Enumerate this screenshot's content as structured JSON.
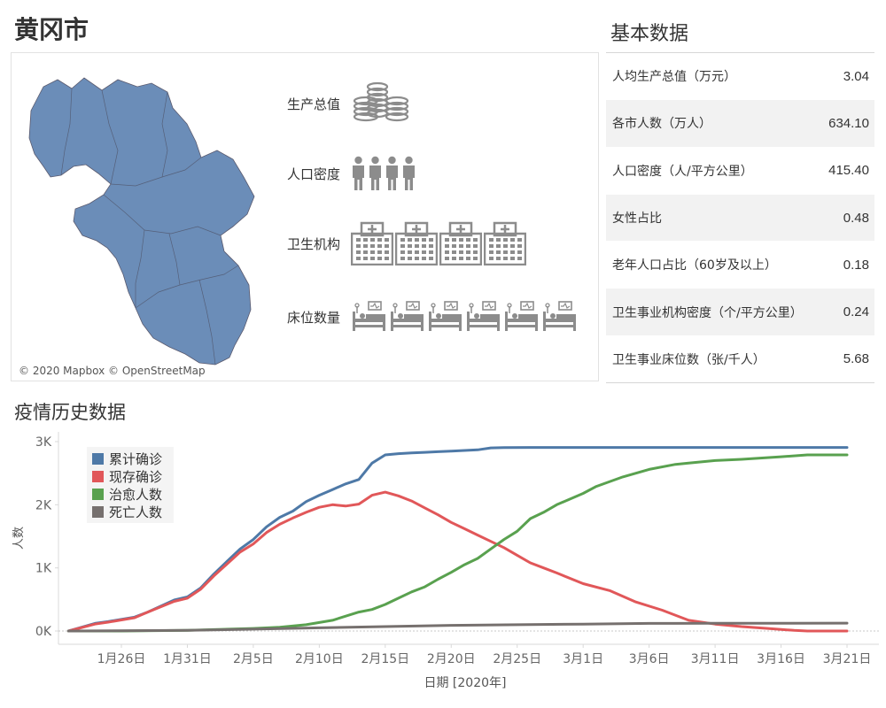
{
  "header": {
    "title": "黄冈市"
  },
  "map": {
    "credit": "© 2020 Mapbox © OpenStreetMap",
    "region_color": "#6b8db8"
  },
  "indicators": [
    {
      "label": "生产总值",
      "icon": "coin-stack-icon",
      "count": 2
    },
    {
      "label": "人口密度",
      "icon": "person-icon",
      "count": 4
    },
    {
      "label": "卫生机构",
      "icon": "hospital-icon",
      "count": 4
    },
    {
      "label": "床位数量",
      "icon": "hospital-bed-icon",
      "count": 6
    }
  ],
  "stats": {
    "title": "基本数据",
    "rows": [
      {
        "label": "人均生产总值（万元）",
        "value": "3.04"
      },
      {
        "label": "各市人数（万人）",
        "value": "634.10"
      },
      {
        "label": "人口密度（人/平方公里）",
        "value": "415.40"
      },
      {
        "label": "女性占比",
        "value": "0.48"
      },
      {
        "label": "老年人口占比（60岁及以上）",
        "value": "0.18"
      },
      {
        "label": "卫生事业机构密度（个/平方公里）",
        "value": "0.24"
      },
      {
        "label": "卫生事业床位数（张/千人）",
        "value": "5.68"
      }
    ]
  },
  "chart_section": {
    "title": "疫情历史数据"
  },
  "chart_data": {
    "type": "line",
    "xlabel": "日期 [2020年]",
    "ylabel": "人数",
    "ylim": [
      0,
      3000
    ],
    "xlim": [
      "2020-01-22",
      "2020-03-22"
    ],
    "x_ticks": [
      {
        "date": "2020-01-26",
        "label": "1月26日"
      },
      {
        "date": "2020-01-31",
        "label": "1月31日"
      },
      {
        "date": "2020-02-05",
        "label": "2月5日"
      },
      {
        "date": "2020-02-10",
        "label": "2月10日"
      },
      {
        "date": "2020-02-15",
        "label": "2月15日"
      },
      {
        "date": "2020-02-20",
        "label": "2月20日"
      },
      {
        "date": "2020-02-25",
        "label": "2月25日"
      },
      {
        "date": "2020-03-01",
        "label": "3月1日"
      },
      {
        "date": "2020-03-06",
        "label": "3月6日"
      },
      {
        "date": "2020-03-11",
        "label": "3月11日"
      },
      {
        "date": "2020-03-16",
        "label": "3月16日"
      },
      {
        "date": "2020-03-21",
        "label": "3月21日"
      }
    ],
    "y_ticks": [
      {
        "value": 0,
        "label": "0K"
      },
      {
        "value": 1000,
        "label": "1K"
      },
      {
        "value": 2000,
        "label": "2K"
      },
      {
        "value": 3000,
        "label": "3K"
      }
    ],
    "legend_position": "top-left",
    "series": [
      {
        "name": "累计确诊",
        "color": "#4e79a7",
        "points": [
          [
            "2020-01-22",
            0
          ],
          [
            "2020-01-24",
            120
          ],
          [
            "2020-01-25",
            150
          ],
          [
            "2020-01-27",
            220
          ],
          [
            "2020-01-28",
            300
          ],
          [
            "2020-01-30",
            490
          ],
          [
            "2020-01-31",
            540
          ],
          [
            "2020-02-01",
            680
          ],
          [
            "2020-02-02",
            900
          ],
          [
            "2020-02-03",
            1100
          ],
          [
            "2020-02-04",
            1300
          ],
          [
            "2020-02-05",
            1450
          ],
          [
            "2020-02-06",
            1650
          ],
          [
            "2020-02-07",
            1800
          ],
          [
            "2020-02-08",
            1900
          ],
          [
            "2020-02-09",
            2050
          ],
          [
            "2020-02-10",
            2150
          ],
          [
            "2020-02-11",
            2240
          ],
          [
            "2020-02-12",
            2330
          ],
          [
            "2020-02-13",
            2400
          ],
          [
            "2020-02-14",
            2660
          ],
          [
            "2020-02-15",
            2790
          ],
          [
            "2020-02-16",
            2810
          ],
          [
            "2020-02-17",
            2820
          ],
          [
            "2020-02-18",
            2830
          ],
          [
            "2020-02-19",
            2840
          ],
          [
            "2020-02-20",
            2850
          ],
          [
            "2020-02-21",
            2860
          ],
          [
            "2020-02-22",
            2870
          ],
          [
            "2020-02-23",
            2900
          ],
          [
            "2020-02-24",
            2905
          ],
          [
            "2020-02-26",
            2907
          ],
          [
            "2020-03-01",
            2907
          ],
          [
            "2020-03-06",
            2907
          ],
          [
            "2020-03-11",
            2907
          ],
          [
            "2020-03-16",
            2907
          ],
          [
            "2020-03-21",
            2907
          ]
        ]
      },
      {
        "name": "现存确诊",
        "color": "#e15759",
        "points": [
          [
            "2020-01-22",
            0
          ],
          [
            "2020-01-24",
            110
          ],
          [
            "2020-01-25",
            140
          ],
          [
            "2020-01-27",
            210
          ],
          [
            "2020-01-28",
            300
          ],
          [
            "2020-01-30",
            470
          ],
          [
            "2020-01-31",
            520
          ],
          [
            "2020-02-01",
            660
          ],
          [
            "2020-02-02",
            870
          ],
          [
            "2020-02-03",
            1060
          ],
          [
            "2020-02-04",
            1250
          ],
          [
            "2020-02-05",
            1380
          ],
          [
            "2020-02-06",
            1560
          ],
          [
            "2020-02-07",
            1690
          ],
          [
            "2020-02-08",
            1790
          ],
          [
            "2020-02-09",
            1880
          ],
          [
            "2020-02-10",
            1960
          ],
          [
            "2020-02-11",
            2000
          ],
          [
            "2020-02-12",
            1980
          ],
          [
            "2020-02-13",
            2010
          ],
          [
            "2020-02-14",
            2150
          ],
          [
            "2020-02-15",
            2200
          ],
          [
            "2020-02-16",
            2140
          ],
          [
            "2020-02-17",
            2060
          ],
          [
            "2020-02-18",
            1950
          ],
          [
            "2020-02-19",
            1840
          ],
          [
            "2020-02-20",
            1720
          ],
          [
            "2020-02-21",
            1620
          ],
          [
            "2020-02-22",
            1520
          ],
          [
            "2020-02-23",
            1420
          ],
          [
            "2020-02-24",
            1320
          ],
          [
            "2020-02-25",
            1200
          ],
          [
            "2020-02-26",
            1080
          ],
          [
            "2020-02-27",
            1000
          ],
          [
            "2020-02-28",
            920
          ],
          [
            "2020-03-01",
            750
          ],
          [
            "2020-03-03",
            640
          ],
          [
            "2020-03-05",
            460
          ],
          [
            "2020-03-07",
            330
          ],
          [
            "2020-03-09",
            170
          ],
          [
            "2020-03-11",
            110
          ],
          [
            "2020-03-13",
            70
          ],
          [
            "2020-03-15",
            40
          ],
          [
            "2020-03-17",
            10
          ],
          [
            "2020-03-18",
            0
          ],
          [
            "2020-03-21",
            0
          ]
        ]
      },
      {
        "name": "治愈人数",
        "color": "#59a14f",
        "points": [
          [
            "2020-01-22",
            0
          ],
          [
            "2020-01-26",
            0
          ],
          [
            "2020-01-31",
            10
          ],
          [
            "2020-02-05",
            40
          ],
          [
            "2020-02-07",
            60
          ],
          [
            "2020-02-09",
            100
          ],
          [
            "2020-02-11",
            170
          ],
          [
            "2020-02-13",
            300
          ],
          [
            "2020-02-14",
            340
          ],
          [
            "2020-02-15",
            420
          ],
          [
            "2020-02-16",
            520
          ],
          [
            "2020-02-17",
            620
          ],
          [
            "2020-02-18",
            700
          ],
          [
            "2020-02-19",
            820
          ],
          [
            "2020-02-20",
            930
          ],
          [
            "2020-02-21",
            1050
          ],
          [
            "2020-02-22",
            1150
          ],
          [
            "2020-02-23",
            1300
          ],
          [
            "2020-02-24",
            1450
          ],
          [
            "2020-02-25",
            1580
          ],
          [
            "2020-02-26",
            1780
          ],
          [
            "2020-02-27",
            1880
          ],
          [
            "2020-02-28",
            2000
          ],
          [
            "2020-03-01",
            2180
          ],
          [
            "2020-03-02",
            2290
          ],
          [
            "2020-03-04",
            2440
          ],
          [
            "2020-03-06",
            2560
          ],
          [
            "2020-03-08",
            2640
          ],
          [
            "2020-03-09",
            2660
          ],
          [
            "2020-03-11",
            2700
          ],
          [
            "2020-03-13",
            2720
          ],
          [
            "2020-03-16",
            2760
          ],
          [
            "2020-03-18",
            2790
          ],
          [
            "2020-03-21",
            2790
          ]
        ]
      },
      {
        "name": "死亡人数",
        "color": "#76706e",
        "points": [
          [
            "2020-01-22",
            0
          ],
          [
            "2020-01-31",
            10
          ],
          [
            "2020-02-05",
            30
          ],
          [
            "2020-02-10",
            50
          ],
          [
            "2020-02-15",
            70
          ],
          [
            "2020-02-20",
            90
          ],
          [
            "2020-02-25",
            100
          ],
          [
            "2020-03-01",
            110
          ],
          [
            "2020-03-06",
            120
          ],
          [
            "2020-03-11",
            122
          ],
          [
            "2020-03-16",
            124
          ],
          [
            "2020-03-21",
            125
          ]
        ]
      }
    ]
  }
}
